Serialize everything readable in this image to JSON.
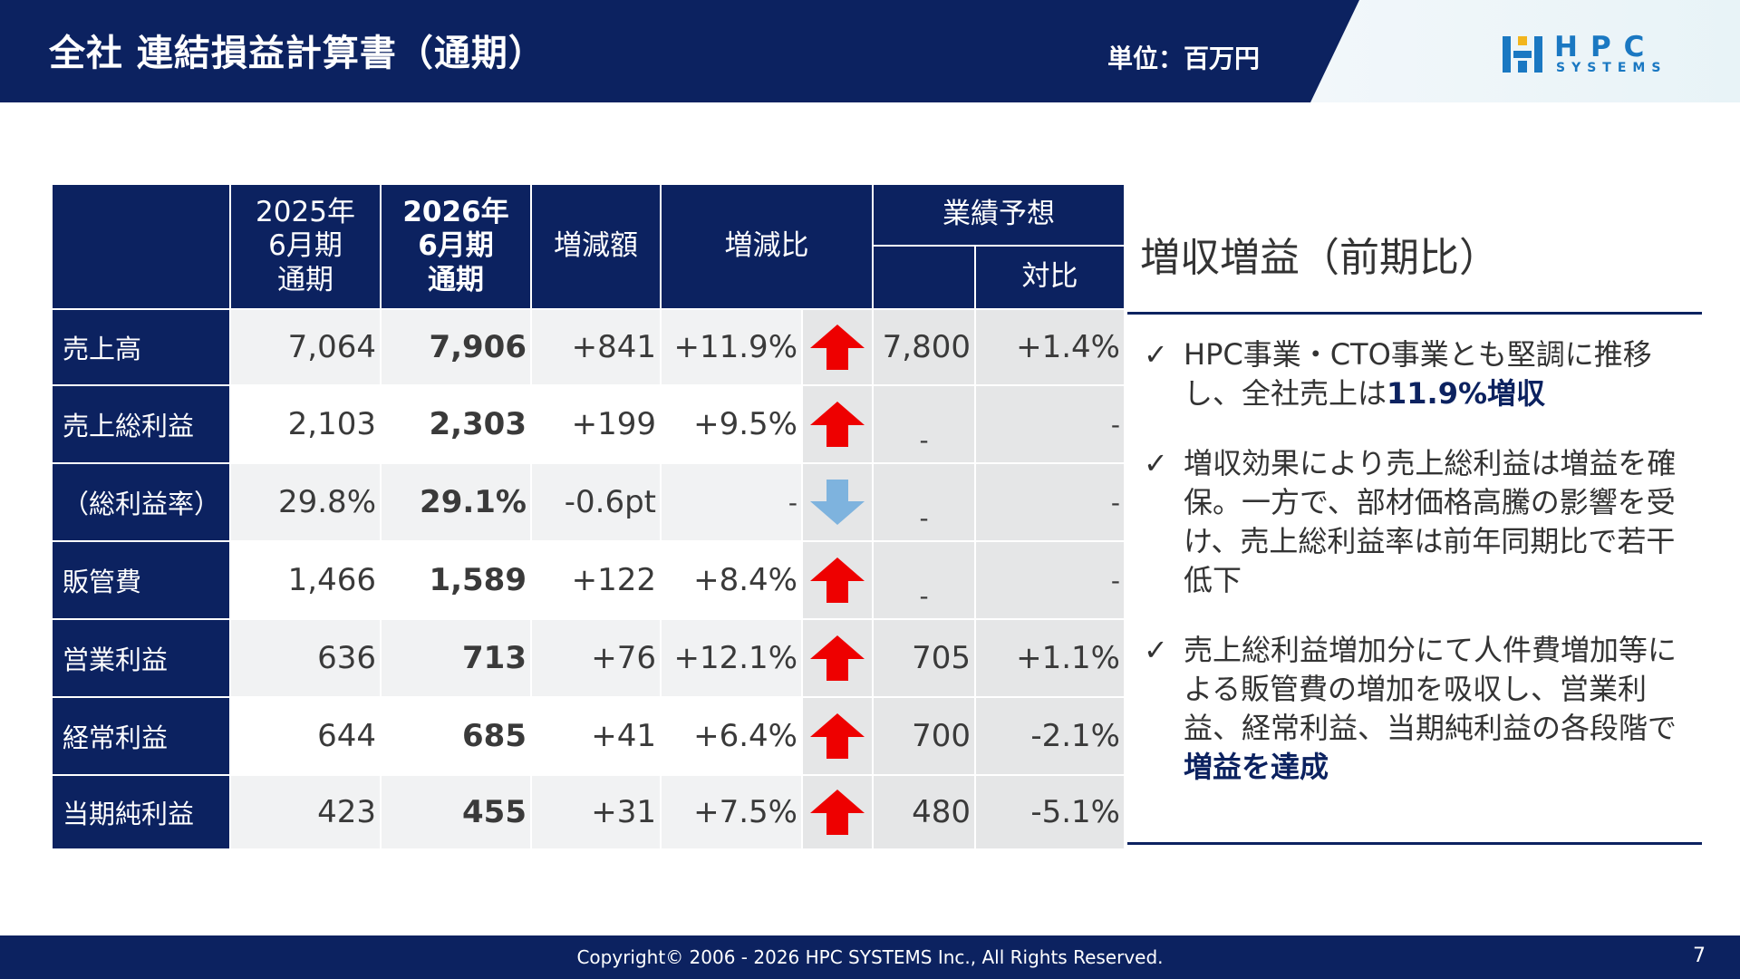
{
  "header": {
    "title": "全社 連結損益計算書（通期）",
    "unit": "単位：百万円",
    "logo": {
      "name": "HPC",
      "sub": "SYSTEMS"
    }
  },
  "colors": {
    "navy": "#0c2260",
    "up_arrow": "#ee0000",
    "down_arrow": "#7eb3de",
    "logo_blue": "#1a78c2"
  },
  "table": {
    "headers": {
      "prev": "2025年\n6月期\n通期",
      "curr": "2026年\n6月期\n通期",
      "diff": "増減額",
      "ratio": "増減比",
      "forecast_group": "業績予想",
      "forecast_compare": "対比"
    },
    "rows": [
      {
        "label": "売上高",
        "prev": "7,064",
        "curr": "7,906",
        "diff": "+841",
        "ratio": "+11.9%",
        "arrow": "up",
        "forecast": "7,800",
        "compare": "+1.4%"
      },
      {
        "label": "売上総利益",
        "prev": "2,103",
        "curr": "2,303",
        "diff": "+199",
        "ratio": "+9.5%",
        "arrow": "up",
        "forecast": "-",
        "compare": "-"
      },
      {
        "label": "（総利益率）",
        "prev": "29.8%",
        "curr": "29.1%",
        "diff": "-0.6pt",
        "ratio": "-",
        "arrow": "down",
        "forecast": "-",
        "compare": "-"
      },
      {
        "label": "販管費",
        "prev": "1,466",
        "curr": "1,589",
        "diff": "+122",
        "ratio": "+8.4%",
        "arrow": "up",
        "forecast": "-",
        "compare": "-"
      },
      {
        "label": "営業利益",
        "prev": "636",
        "curr": "713",
        "diff": "+76",
        "ratio": "+12.1%",
        "arrow": "up",
        "forecast": "705",
        "compare": "+1.1%"
      },
      {
        "label": "経常利益",
        "prev": "644",
        "curr": "685",
        "diff": "+41",
        "ratio": "+6.4%",
        "arrow": "up",
        "forecast": "700",
        "compare": "-2.1%"
      },
      {
        "label": "当期純利益",
        "prev": "423",
        "curr": "455",
        "diff": "+31",
        "ratio": "+7.5%",
        "arrow": "up",
        "forecast": "480",
        "compare": "-5.1%"
      }
    ]
  },
  "summary": {
    "title": "増収増益（前期比）",
    "check": "✓",
    "bullets": [
      {
        "text": "HPC事業・CTO事業とも堅調に推移し、全社売上は",
        "emph": "11.9%増収",
        "after": ""
      },
      {
        "text": "増収効果により売上総利益は増益を確保。一方で、部材価格高騰の影響を受け、売上総利益率は前年同期比で若干低下",
        "emph": "",
        "after": ""
      },
      {
        "text": "売上総利益増加分にて人件費増加等による販管費の増加を吸収し、営業利益、経常利益、当期純利益の各段階で",
        "emph": "増益を達成",
        "after": ""
      }
    ]
  },
  "footer": {
    "copyright": "Copyright© 2006 - 2026 HPC SYSTEMS Inc., All Rights Reserved.",
    "page": "7"
  }
}
